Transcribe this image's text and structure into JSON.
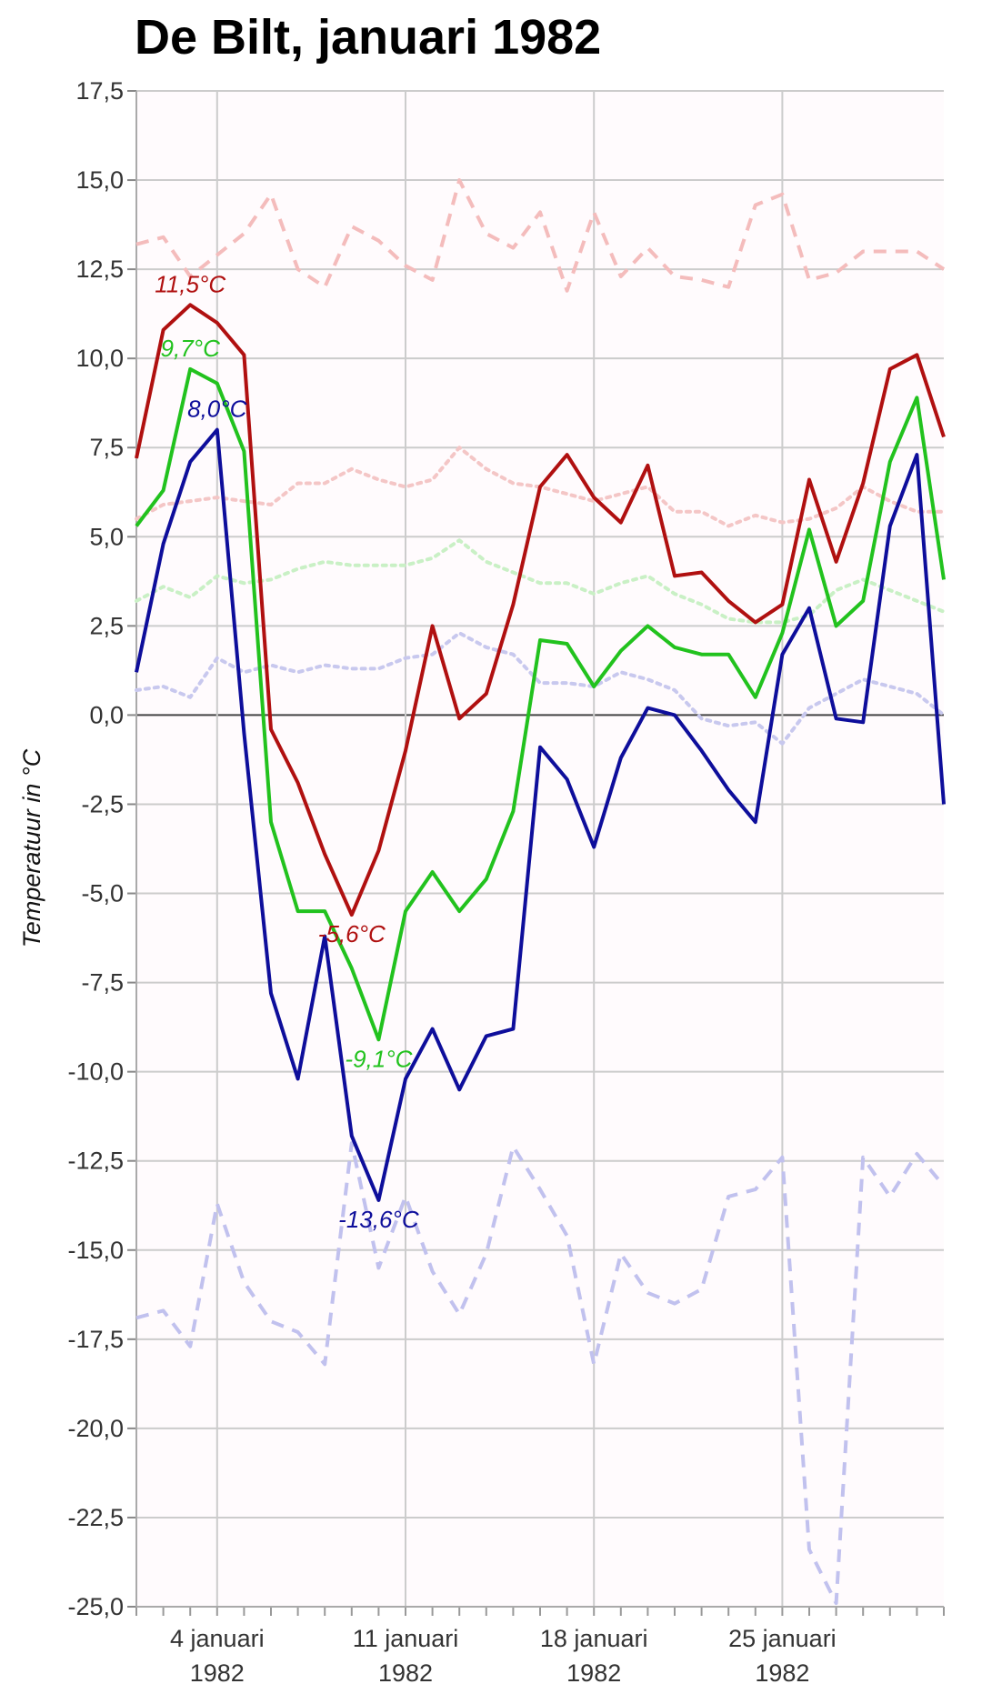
{
  "chart_data": {
    "type": "line",
    "title": "De Bilt, januari 1982",
    "ylabel": "Temperatuur in °C",
    "xlabel": "",
    "ylim": [
      -25,
      17.5
    ],
    "y_ticks": [
      "17,5",
      "15,0",
      "12,5",
      "10,0",
      "7,5",
      "5,0",
      "2,5",
      "0,0",
      "-2,5",
      "-5,0",
      "-7,5",
      "-10,0",
      "-12,5",
      "-15,0",
      "-17,5",
      "-20,0",
      "-22,5",
      "-25,0"
    ],
    "x_ticks": [
      {
        "day": 4,
        "line1": "4 januari",
        "line2": "1982"
      },
      {
        "day": 11,
        "line1": "11 januari",
        "line2": "1982"
      },
      {
        "day": 18,
        "line1": "18 januari",
        "line2": "1982"
      },
      {
        "day": 25,
        "line1": "25 januari",
        "line2": "1982"
      }
    ],
    "x_range": [
      1,
      31
    ],
    "grid": true,
    "legend": "none",
    "series": [
      {
        "color": "#f4bcbc",
        "style": "dashed",
        "values": [
          13.2,
          13.4,
          12.3,
          12.9,
          13.5,
          14.6,
          12.5,
          12.0,
          13.7,
          13.3,
          12.6,
          12.2,
          15.0,
          13.5,
          13.1,
          14.1,
          11.9,
          14.1,
          12.3,
          13.1,
          12.3,
          12.2,
          12.0,
          14.3,
          14.6,
          12.2,
          12.4,
          13.0,
          13.0,
          13.0,
          12.5
        ]
      },
      {
        "color": "#f4c6c6",
        "style": "dotted",
        "values": [
          5.5,
          5.9,
          6.0,
          6.1,
          6.0,
          5.9,
          6.5,
          6.5,
          6.9,
          6.6,
          6.4,
          6.6,
          7.5,
          6.9,
          6.5,
          6.4,
          6.2,
          6.0,
          6.2,
          6.4,
          5.7,
          5.7,
          5.3,
          5.6,
          5.4,
          5.5,
          5.8,
          6.4,
          6.0,
          5.7,
          5.7
        ]
      },
      {
        "color": "#c9f0c5",
        "style": "dotted",
        "values": [
          3.2,
          3.6,
          3.3,
          3.9,
          3.7,
          3.8,
          4.1,
          4.3,
          4.2,
          4.2,
          4.2,
          4.4,
          4.9,
          4.3,
          4.0,
          3.7,
          3.7,
          3.4,
          3.7,
          3.9,
          3.4,
          3.1,
          2.7,
          2.6,
          2.6,
          2.8,
          3.5,
          3.8,
          3.5,
          3.2,
          2.9
        ]
      },
      {
        "color": "#c8c8ee",
        "style": "dotted",
        "values": [
          0.7,
          0.8,
          0.5,
          1.6,
          1.2,
          1.4,
          1.2,
          1.4,
          1.3,
          1.3,
          1.6,
          1.7,
          2.3,
          1.9,
          1.7,
          0.9,
          0.9,
          0.8,
          1.2,
          1.0,
          0.7,
          -0.1,
          -0.3,
          -0.2,
          -0.8,
          0.2,
          0.6,
          1.0,
          0.8,
          0.6,
          0.0
        ]
      },
      {
        "color": "#c1c1ee",
        "style": "dashed",
        "values": [
          -16.9,
          -16.7,
          -17.7,
          -13.7,
          -15.9,
          -17.0,
          -17.3,
          -18.2,
          -12.0,
          -15.5,
          -13.5,
          -15.6,
          -16.8,
          -15.1,
          -12.1,
          -13.3,
          -14.6,
          -18.2,
          -15.1,
          -16.2,
          -16.5,
          -16.1,
          -13.5,
          -13.3,
          -12.4,
          -23.4,
          -24.9,
          -12.4,
          -13.5,
          -12.3,
          -13.2
        ]
      },
      {
        "color": "#b01010",
        "style": "solid",
        "values": [
          7.2,
          10.8,
          11.5,
          11.0,
          10.1,
          -0.4,
          -1.9,
          -3.9,
          -5.6,
          -3.8,
          -1.0,
          2.5,
          -0.1,
          0.6,
          3.1,
          6.4,
          7.3,
          6.1,
          5.4,
          7.0,
          3.9,
          4.0,
          3.2,
          2.6,
          3.1,
          6.6,
          4.3,
          6.5,
          9.7,
          10.1,
          7.8
        ]
      },
      {
        "color": "#22c21e",
        "style": "solid",
        "values": [
          5.3,
          6.3,
          9.7,
          9.3,
          7.4,
          -3.0,
          -5.5,
          -5.5,
          -7.1,
          -9.1,
          -5.5,
          -4.4,
          -5.5,
          -4.6,
          -2.7,
          2.1,
          2.0,
          0.8,
          1.8,
          2.5,
          1.9,
          1.7,
          1.7,
          0.5,
          2.3,
          5.2,
          2.5,
          3.2,
          7.1,
          8.9,
          3.8
        ]
      },
      {
        "color": "#0e0e9b",
        "style": "solid",
        "values": [
          1.2,
          4.8,
          7.1,
          8.0,
          -0.5,
          -7.8,
          -10.2,
          -6.2,
          -11.8,
          -13.6,
          -10.2,
          -8.8,
          -10.5,
          -9.0,
          -8.8,
          -0.9,
          -1.8,
          -3.7,
          -1.2,
          0.2,
          0.0,
          -1.0,
          -2.1,
          -3.0,
          1.7,
          3.0,
          -0.1,
          -0.2,
          5.3,
          7.3,
          -2.5
        ]
      }
    ],
    "annotations": [
      {
        "text": "11,5°C",
        "day": 3,
        "value": 11.5,
        "color": "#b01010"
      },
      {
        "text": "9,7°C",
        "day": 3,
        "value": 9.7,
        "color": "#22c21e"
      },
      {
        "text": "8,0°C",
        "day": 4,
        "value": 8.0,
        "color": "#0e0e9b"
      },
      {
        "text": "-5,6°C",
        "day": 9,
        "value": -5.6,
        "color": "#b01010"
      },
      {
        "text": "-9,1°C",
        "day": 10,
        "value": -9.1,
        "color": "#22c21e"
      },
      {
        "text": "-13,6°C",
        "day": 10,
        "value": -13.6,
        "color": "#0e0e9b"
      }
    ]
  }
}
